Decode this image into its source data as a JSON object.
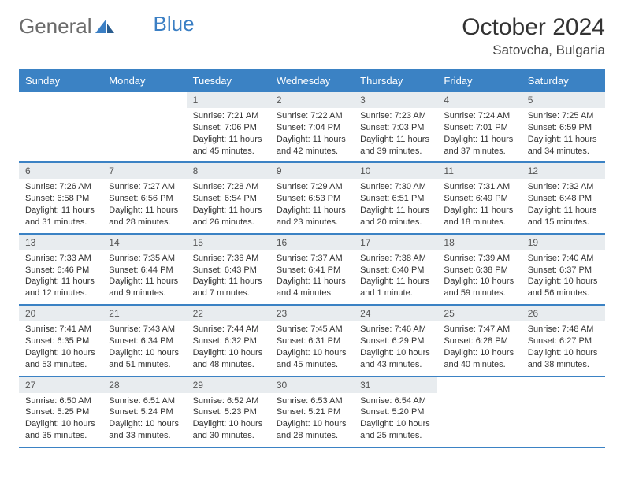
{
  "brand": {
    "part1": "General",
    "part2": "Blue"
  },
  "title": "October 2024",
  "location": "Satovcha, Bulgaria",
  "colors": {
    "header_bg": "#3b82c4",
    "header_text": "#ffffff",
    "daynum_bg": "#e8ecef",
    "border": "#3b82c4",
    "logo_gray": "#6b6b6b",
    "logo_blue": "#3b7fc4"
  },
  "weekdays": [
    "Sunday",
    "Monday",
    "Tuesday",
    "Wednesday",
    "Thursday",
    "Friday",
    "Saturday"
  ],
  "grid": [
    [
      null,
      null,
      {
        "n": "1",
        "sr": "Sunrise: 7:21 AM",
        "ss": "Sunset: 7:06 PM",
        "d1": "Daylight: 11 hours",
        "d2": "and 45 minutes."
      },
      {
        "n": "2",
        "sr": "Sunrise: 7:22 AM",
        "ss": "Sunset: 7:04 PM",
        "d1": "Daylight: 11 hours",
        "d2": "and 42 minutes."
      },
      {
        "n": "3",
        "sr": "Sunrise: 7:23 AM",
        "ss": "Sunset: 7:03 PM",
        "d1": "Daylight: 11 hours",
        "d2": "and 39 minutes."
      },
      {
        "n": "4",
        "sr": "Sunrise: 7:24 AM",
        "ss": "Sunset: 7:01 PM",
        "d1": "Daylight: 11 hours",
        "d2": "and 37 minutes."
      },
      {
        "n": "5",
        "sr": "Sunrise: 7:25 AM",
        "ss": "Sunset: 6:59 PM",
        "d1": "Daylight: 11 hours",
        "d2": "and 34 minutes."
      }
    ],
    [
      {
        "n": "6",
        "sr": "Sunrise: 7:26 AM",
        "ss": "Sunset: 6:58 PM",
        "d1": "Daylight: 11 hours",
        "d2": "and 31 minutes."
      },
      {
        "n": "7",
        "sr": "Sunrise: 7:27 AM",
        "ss": "Sunset: 6:56 PM",
        "d1": "Daylight: 11 hours",
        "d2": "and 28 minutes."
      },
      {
        "n": "8",
        "sr": "Sunrise: 7:28 AM",
        "ss": "Sunset: 6:54 PM",
        "d1": "Daylight: 11 hours",
        "d2": "and 26 minutes."
      },
      {
        "n": "9",
        "sr": "Sunrise: 7:29 AM",
        "ss": "Sunset: 6:53 PM",
        "d1": "Daylight: 11 hours",
        "d2": "and 23 minutes."
      },
      {
        "n": "10",
        "sr": "Sunrise: 7:30 AM",
        "ss": "Sunset: 6:51 PM",
        "d1": "Daylight: 11 hours",
        "d2": "and 20 minutes."
      },
      {
        "n": "11",
        "sr": "Sunrise: 7:31 AM",
        "ss": "Sunset: 6:49 PM",
        "d1": "Daylight: 11 hours",
        "d2": "and 18 minutes."
      },
      {
        "n": "12",
        "sr": "Sunrise: 7:32 AM",
        "ss": "Sunset: 6:48 PM",
        "d1": "Daylight: 11 hours",
        "d2": "and 15 minutes."
      }
    ],
    [
      {
        "n": "13",
        "sr": "Sunrise: 7:33 AM",
        "ss": "Sunset: 6:46 PM",
        "d1": "Daylight: 11 hours",
        "d2": "and 12 minutes."
      },
      {
        "n": "14",
        "sr": "Sunrise: 7:35 AM",
        "ss": "Sunset: 6:44 PM",
        "d1": "Daylight: 11 hours",
        "d2": "and 9 minutes."
      },
      {
        "n": "15",
        "sr": "Sunrise: 7:36 AM",
        "ss": "Sunset: 6:43 PM",
        "d1": "Daylight: 11 hours",
        "d2": "and 7 minutes."
      },
      {
        "n": "16",
        "sr": "Sunrise: 7:37 AM",
        "ss": "Sunset: 6:41 PM",
        "d1": "Daylight: 11 hours",
        "d2": "and 4 minutes."
      },
      {
        "n": "17",
        "sr": "Sunrise: 7:38 AM",
        "ss": "Sunset: 6:40 PM",
        "d1": "Daylight: 11 hours",
        "d2": "and 1 minute."
      },
      {
        "n": "18",
        "sr": "Sunrise: 7:39 AM",
        "ss": "Sunset: 6:38 PM",
        "d1": "Daylight: 10 hours",
        "d2": "and 59 minutes."
      },
      {
        "n": "19",
        "sr": "Sunrise: 7:40 AM",
        "ss": "Sunset: 6:37 PM",
        "d1": "Daylight: 10 hours",
        "d2": "and 56 minutes."
      }
    ],
    [
      {
        "n": "20",
        "sr": "Sunrise: 7:41 AM",
        "ss": "Sunset: 6:35 PM",
        "d1": "Daylight: 10 hours",
        "d2": "and 53 minutes."
      },
      {
        "n": "21",
        "sr": "Sunrise: 7:43 AM",
        "ss": "Sunset: 6:34 PM",
        "d1": "Daylight: 10 hours",
        "d2": "and 51 minutes."
      },
      {
        "n": "22",
        "sr": "Sunrise: 7:44 AM",
        "ss": "Sunset: 6:32 PM",
        "d1": "Daylight: 10 hours",
        "d2": "and 48 minutes."
      },
      {
        "n": "23",
        "sr": "Sunrise: 7:45 AM",
        "ss": "Sunset: 6:31 PM",
        "d1": "Daylight: 10 hours",
        "d2": "and 45 minutes."
      },
      {
        "n": "24",
        "sr": "Sunrise: 7:46 AM",
        "ss": "Sunset: 6:29 PM",
        "d1": "Daylight: 10 hours",
        "d2": "and 43 minutes."
      },
      {
        "n": "25",
        "sr": "Sunrise: 7:47 AM",
        "ss": "Sunset: 6:28 PM",
        "d1": "Daylight: 10 hours",
        "d2": "and 40 minutes."
      },
      {
        "n": "26",
        "sr": "Sunrise: 7:48 AM",
        "ss": "Sunset: 6:27 PM",
        "d1": "Daylight: 10 hours",
        "d2": "and 38 minutes."
      }
    ],
    [
      {
        "n": "27",
        "sr": "Sunrise: 6:50 AM",
        "ss": "Sunset: 5:25 PM",
        "d1": "Daylight: 10 hours",
        "d2": "and 35 minutes."
      },
      {
        "n": "28",
        "sr": "Sunrise: 6:51 AM",
        "ss": "Sunset: 5:24 PM",
        "d1": "Daylight: 10 hours",
        "d2": "and 33 minutes."
      },
      {
        "n": "29",
        "sr": "Sunrise: 6:52 AM",
        "ss": "Sunset: 5:23 PM",
        "d1": "Daylight: 10 hours",
        "d2": "and 30 minutes."
      },
      {
        "n": "30",
        "sr": "Sunrise: 6:53 AM",
        "ss": "Sunset: 5:21 PM",
        "d1": "Daylight: 10 hours",
        "d2": "and 28 minutes."
      },
      {
        "n": "31",
        "sr": "Sunrise: 6:54 AM",
        "ss": "Sunset: 5:20 PM",
        "d1": "Daylight: 10 hours",
        "d2": "and 25 minutes."
      },
      null,
      null
    ]
  ]
}
